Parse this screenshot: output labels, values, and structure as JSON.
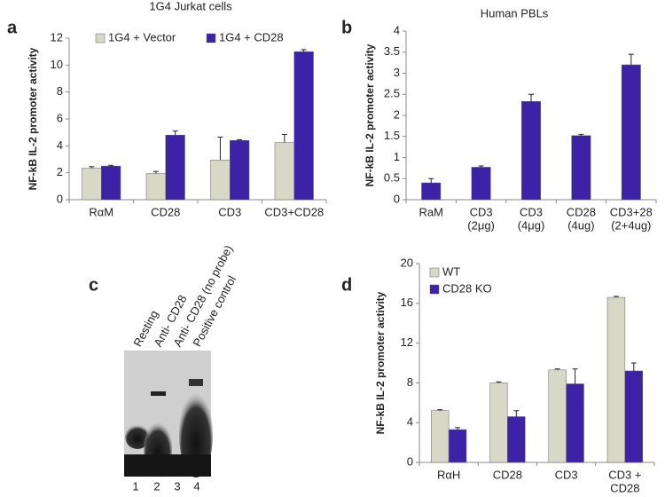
{
  "chart_data": [
    {
      "type": "bar",
      "panel": "a",
      "title": "1G4 Jurkat cells",
      "y_label": "NF-kB IL-2 promoter activity",
      "categories": [
        [
          "RαM"
        ],
        [
          "CD28"
        ],
        [
          "CD3"
        ],
        [
          "CD3+CD28"
        ]
      ],
      "series": [
        {
          "name": "1G4 + Vector",
          "color": "#d8d8c6",
          "values": [
            2.35,
            1.95,
            2.95,
            4.25
          ],
          "errors": [
            0.1,
            0.15,
            1.7,
            0.6
          ]
        },
        {
          "name": "1G4 + CD28",
          "color": "#3b22a6",
          "values": [
            2.5,
            4.8,
            4.4,
            11.0
          ],
          "errors": [
            0.05,
            0.3,
            0.05,
            0.15
          ]
        }
      ],
      "ylim": [
        0,
        12
      ],
      "yticks": [
        0,
        2,
        4,
        6,
        8,
        10,
        12
      ],
      "legend": "upper left"
    },
    {
      "type": "bar",
      "panel": "b",
      "title": "Human PBLs",
      "y_label": "NF-kB IL-2 promoter activity",
      "categories": [
        [
          "RaM"
        ],
        [
          "CD3",
          "(2μg)"
        ],
        [
          "CD3",
          "(4μg)"
        ],
        [
          "CD28",
          "(4ug)"
        ],
        [
          "CD3+28",
          "(2+4ug)"
        ]
      ],
      "series": [
        {
          "color": "#3b22a6",
          "values": [
            0.4,
            0.77,
            2.33,
            1.52,
            3.2
          ],
          "errors": [
            0.1,
            0.03,
            0.17,
            0.03,
            0.25
          ]
        }
      ],
      "ylim": [
        0,
        4
      ],
      "yticks": [
        0,
        0.5,
        1,
        1.5,
        2,
        2.5,
        3,
        3.5,
        4
      ]
    },
    {
      "type": "bar",
      "panel": "d",
      "y_label": "NF-kB IL-2 promoter activity",
      "categories": [
        [
          "RαH"
        ],
        [
          "CD28"
        ],
        [
          "CD3"
        ],
        [
          "CD3 +",
          "CD28"
        ]
      ],
      "series": [
        {
          "name": "WT",
          "color": "#d8d8c6",
          "values": [
            5.2,
            8.0,
            9.3,
            16.6
          ],
          "errors": [
            0.1,
            0.1,
            0.1,
            0.1
          ]
        },
        {
          "name": "CD28 KO",
          "color": "#3b22a6",
          "values": [
            3.3,
            4.6,
            7.9,
            9.2
          ],
          "errors": [
            0.2,
            0.6,
            1.5,
            0.8
          ]
        }
      ],
      "ylim": [
        0,
        20
      ],
      "yticks": [
        0,
        4,
        8,
        12,
        16,
        20
      ],
      "legend": "upper left"
    }
  ],
  "gel": {
    "panel": "c",
    "lanes": [
      "Resting",
      "Anti- CD28",
      "Anti- CD28 (no probe)",
      "Positive control"
    ],
    "lane_numbers": [
      "1",
      "2",
      "3",
      "4"
    ]
  }
}
